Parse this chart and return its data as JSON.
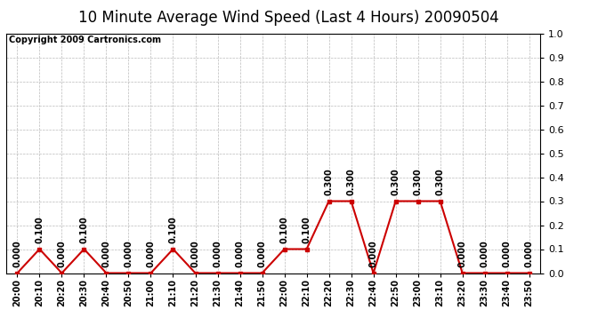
{
  "title": "10 Minute Average Wind Speed (Last 4 Hours) 20090504",
  "copyright": "Copyright 2009 Cartronics.com",
  "x_labels": [
    "20:00",
    "20:10",
    "20:20",
    "20:30",
    "20:40",
    "20:50",
    "21:00",
    "21:10",
    "21:20",
    "21:30",
    "21:40",
    "21:50",
    "22:00",
    "22:10",
    "22:20",
    "22:30",
    "22:40",
    "22:50",
    "23:00",
    "23:10",
    "23:20",
    "23:30",
    "23:40",
    "23:50"
  ],
  "y_values": [
    0.0,
    0.1,
    0.0,
    0.1,
    0.0,
    0.0,
    0.0,
    0.1,
    0.0,
    0.0,
    0.0,
    0.0,
    0.1,
    0.1,
    0.3,
    0.3,
    0.0,
    0.3,
    0.3,
    0.3,
    0.0,
    0.0,
    0.0,
    0.0
  ],
  "line_color": "#cc0000",
  "bg_color": "#ffffff",
  "grid_color": "#bbbbbb",
  "ylim": [
    0.0,
    1.0
  ],
  "yticks": [
    0.0,
    0.1,
    0.2,
    0.3,
    0.4,
    0.5,
    0.6,
    0.7,
    0.8,
    0.9,
    1.0
  ],
  "title_fontsize": 12,
  "tick_fontsize": 7,
  "annotation_fontsize": 7,
  "copyright_fontsize": 7
}
